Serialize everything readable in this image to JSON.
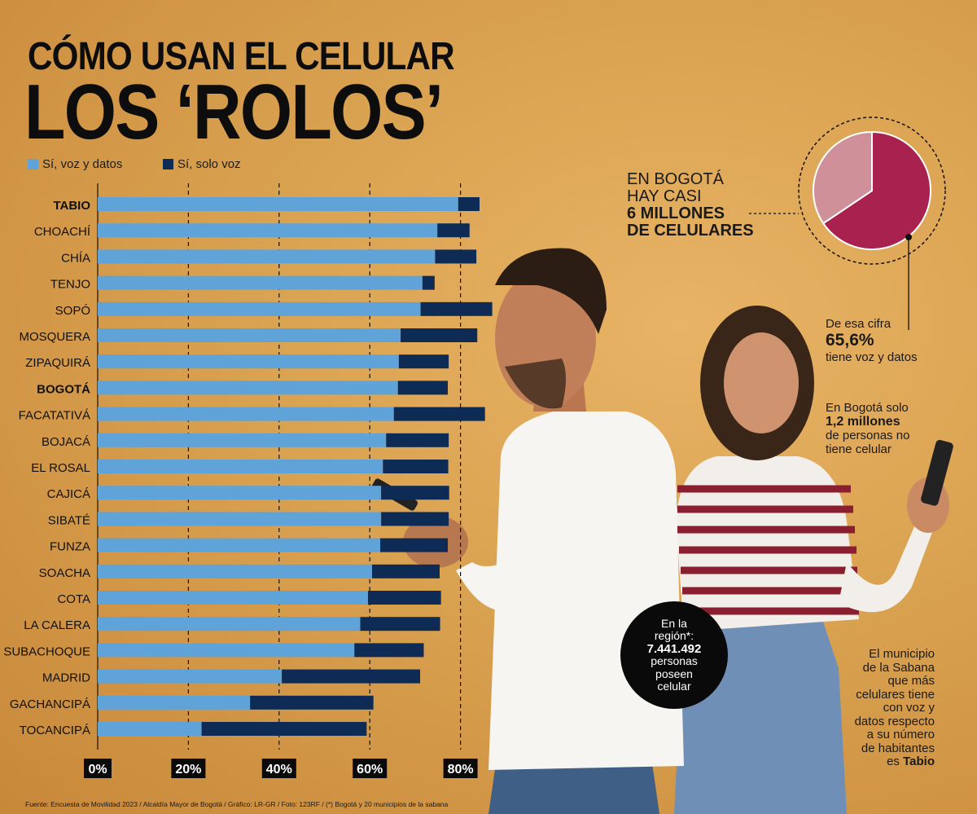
{
  "header": {
    "title_line1": "CÓMO USAN EL CELULAR",
    "title_line2": "LOS ‘ROLOS’"
  },
  "legend": {
    "voz_datos": "Sí, voz y datos",
    "solo_voz": "Sí, solo voz"
  },
  "colors": {
    "voz_datos": "#5fa3d8",
    "solo_voz": "#0d2b55",
    "pie_main": "#a8214f",
    "pie_rest": "#d0909a",
    "gridline": "#111111"
  },
  "chart_data": {
    "type": "bar",
    "orientation": "horizontal",
    "stacked": true,
    "categories": [
      "TABIO",
      "CHOACHÍ",
      "CHÍA",
      "TENJO",
      "SOPÓ",
      "MOSQUERA",
      "ZIPAQUIRÁ",
      "BOGOTÁ",
      "FACATATIVÁ",
      "BOJACÁ",
      "EL ROSAL",
      "CAJICÁ",
      "SIBATÉ",
      "FUNZA",
      "SOACHA",
      "COTA",
      "LA CALERA",
      "SUBACHOQUE",
      "MADRID",
      "GACHANCIPÁ",
      "TOCANCIPÁ"
    ],
    "bold_categories": [
      "TABIO",
      "BOGOTÁ"
    ],
    "series": [
      {
        "name": "Sí, voz y datos",
        "values": [
          79.5,
          74.9,
          74.4,
          71.6,
          71.2,
          66.8,
          66.4,
          66.2,
          65.3,
          63.6,
          62.9,
          62.5,
          62.5,
          62.3,
          60.5,
          59.6,
          57.9,
          56.6,
          40.6,
          33.6,
          22.9
        ]
      },
      {
        "name": "Sí, solo voz",
        "values": [
          4.7,
          7.1,
          9.1,
          2.7,
          15.8,
          16.9,
          11.0,
          11.0,
          20.1,
          13.8,
          14.4,
          15.0,
          14.9,
          14.9,
          14.9,
          16.1,
          17.6,
          15.3,
          30.5,
          27.2,
          36.4
        ]
      }
    ],
    "xlim": [
      0,
      85
    ],
    "ticks": [
      "0%",
      "20%",
      "40%",
      "60%",
      "80%"
    ],
    "tick_values": [
      0,
      20,
      40,
      60,
      80
    ],
    "pie": {
      "values": [
        65.6,
        34.4
      ]
    }
  },
  "bogota": {
    "line1": "EN BOGOTÁ",
    "line2": "HAY CASI",
    "line3": "6 MILLONES",
    "line4": "DE CELULARES"
  },
  "cifra": {
    "line1": "De esa cifra",
    "pct": "65,6%",
    "line2": "tiene voz y datos"
  },
  "sin_celular": {
    "line1": "En Bogotá solo",
    "num": "1,2  millones",
    "line2": "de personas no",
    "line3": "tiene celular"
  },
  "region": {
    "line1": "En la",
    "line2": "región*:",
    "num": "7.441.492",
    "line3": "personas",
    "line4": "poseen",
    "line5": "celular"
  },
  "tabio_note": {
    "line1": "El municipio",
    "line2": "de la Sabana",
    "line3": "que más",
    "line4": "celulares tiene",
    "line5": "con voz y",
    "line6": "datos respecto",
    "line7": "a su número",
    "line8": "de habitantes",
    "line9_pre": "es ",
    "line9_bold": "Tabio"
  },
  "source": "Fuente: Encuesta de Movilidad 2023 / Alcaldía Mayor de Bogotá / Gráfico: LR-GR / Foto: 123RF / (*) Bogotá y 20 municipios de la sabana"
}
